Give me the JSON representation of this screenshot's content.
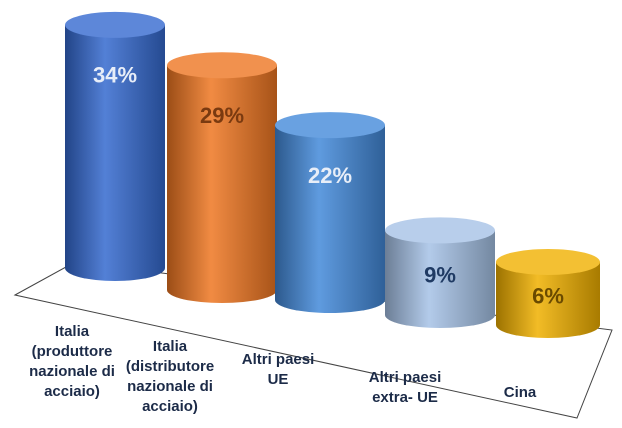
{
  "chart_data": {
    "type": "cylinder",
    "categories": [
      "Italia\n(produttore\nnazionale di\nacciaio)",
      "Italia\n(distributore\nnazionale di\nacciaio)",
      "Altri paesi\nUE",
      "Altri paesi\nextra- UE",
      "Cina"
    ],
    "values": [
      34,
      29,
      22,
      9,
      6
    ],
    "value_labels": [
      "34%",
      "29%",
      "22%",
      "9%",
      "6%"
    ],
    "colors": [
      "#3569cf",
      "#ee7622",
      "#4389d9",
      "#a6c2e6",
      "#f0b000"
    ],
    "label_colors": [
      "#e8eef8",
      "#7a3a10",
      "#e8eef8",
      "#1f3a63",
      "#6a4a00"
    ]
  }
}
